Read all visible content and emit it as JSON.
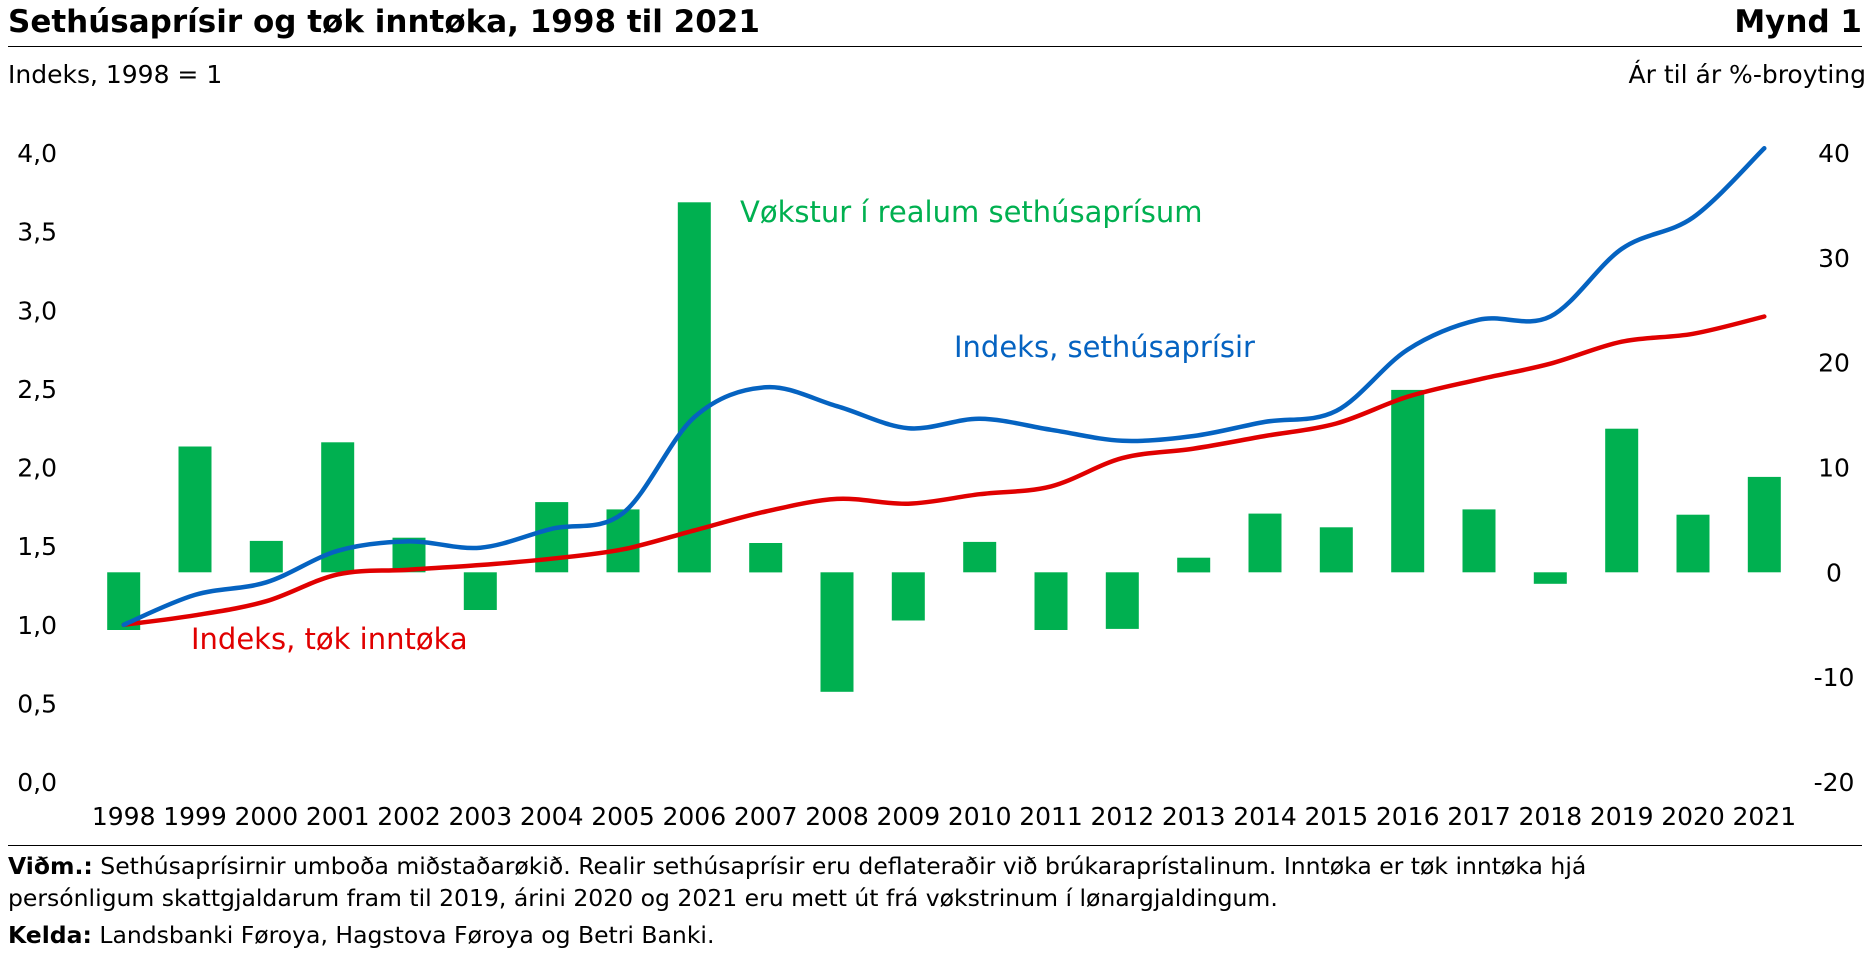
{
  "title": "Sethúsaprísir og tøk inntøka, 1998 til 2021",
  "figure_label": "Mynd 1",
  "notes": {
    "note_label": "Viðm.:",
    "note_line1": "Sethúsaprísirnir umboða miðstaðarøkið. Realir sethúsaprísir eru deflateraðir við brúkaraprístalinum. Inntøka er tøk inntøka hjá",
    "note_line2": "persónligum skattgjaldarum fram til 2019, árini 2020 og 2021 eru mett út frá vøkstrinum í lønargjaldingum.",
    "source_label": "Kelda:",
    "source_text": "Landsbanki Føroya, Hagstova Føroya og Betri Banki."
  },
  "chart_data": {
    "type": "bar",
    "ylabel": "Indeks, 1998 = 1",
    "y2label": "Ár til ár %-broyting",
    "ylim": [
      0,
      4
    ],
    "y2lim": [
      -20,
      40
    ],
    "y_ticks": [
      "0,0",
      "0,5",
      "1,0",
      "1,5",
      "2,0",
      "2,5",
      "3,0",
      "3,5",
      "4,0"
    ],
    "y2_ticks": [
      "-20",
      "-10",
      "0",
      "10",
      "20",
      "30",
      "40"
    ],
    "categories": [
      "1998",
      "1999",
      "2000",
      "2001",
      "2002",
      "2003",
      "2004",
      "2005",
      "2006",
      "2007",
      "2008",
      "2009",
      "2010",
      "2011",
      "2012",
      "2013",
      "2014",
      "2015",
      "2016",
      "2017",
      "2018",
      "2019",
      "2020",
      "2021"
    ],
    "series": [
      {
        "name": "Vøkstur í realum sethúsaprísum",
        "type": "bar",
        "axis": "right",
        "color": "#00b050",
        "values": [
          -5.5,
          12,
          3,
          12.4,
          3.3,
          -3.6,
          6.7,
          6,
          35.3,
          2.8,
          -11.4,
          -4.6,
          2.9,
          -5.5,
          -5.4,
          1.4,
          5.6,
          4.3,
          17.4,
          6,
          -1.1,
          13.7,
          5.5,
          9.1
        ]
      },
      {
        "name": "Indeks, sethúsaprísir",
        "type": "line",
        "axis": "left",
        "color": "#0563c1",
        "values": [
          1.0,
          1.19,
          1.27,
          1.47,
          1.53,
          1.49,
          1.61,
          1.71,
          2.32,
          2.51,
          2.39,
          2.25,
          2.31,
          2.24,
          2.17,
          2.2,
          2.29,
          2.36,
          2.75,
          2.94,
          2.96,
          3.39,
          3.59,
          4.03
        ]
      },
      {
        "name": "Indeks, tøk inntøka",
        "type": "line",
        "axis": "left",
        "color": "#e00000",
        "values": [
          1.0,
          1.06,
          1.15,
          1.32,
          1.35,
          1.38,
          1.42,
          1.48,
          1.6,
          1.72,
          1.8,
          1.77,
          1.83,
          1.88,
          2.06,
          2.12,
          2.2,
          2.28,
          2.45,
          2.56,
          2.66,
          2.8,
          2.85,
          2.96
        ]
      }
    ],
    "grid": false,
    "legend": "inline labels"
  }
}
